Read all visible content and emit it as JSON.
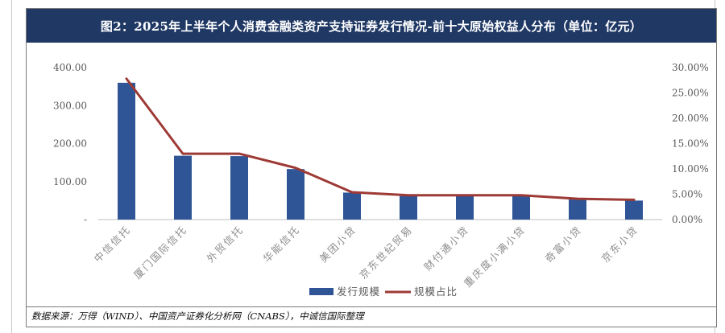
{
  "title": "图2：2025年上半年个人消费金融类资产支持证券发行情况-前十大原始权益人分布（单位：亿元）",
  "source": "数据来源：万得（WIND）、中国资产证券化分析网（CNABS），中诚信国际整理",
  "colors": {
    "title_bg": "#1f3864",
    "bar": "#2f5597",
    "line": "#9e3a36"
  },
  "chart_data": {
    "type": "bar",
    "categories": [
      "中信信托",
      "厦门国际信托",
      "外贸信托",
      "华能信托",
      "美团小贷",
      "京东世纪贸易",
      "财付通小贷",
      "重庆度小满小贷",
      "奇富小贷",
      "京东小贷"
    ],
    "series": [
      {
        "name": "发行规模",
        "type": "bar",
        "axis": "left",
        "values": [
          360,
          168,
          167,
          133,
          71,
          62,
          62,
          62,
          53,
          50
        ]
      },
      {
        "name": "规模占比",
        "type": "line",
        "axis": "right",
        "unit": "%",
        "values": [
          27.8,
          13.0,
          13.0,
          10.2,
          5.4,
          4.8,
          4.8,
          4.8,
          4.1,
          3.9
        ]
      }
    ],
    "left_axis": {
      "ticks": [
        "-",
        "100.00",
        "200.00",
        "300.00",
        "400.00"
      ],
      "ylim": [
        0,
        400
      ]
    },
    "right_axis": {
      "ticks": [
        "0.00%",
        "5.00%",
        "10.00%",
        "15.00%",
        "20.00%",
        "25.00%",
        "30.00%"
      ],
      "ylim": [
        0,
        30
      ]
    },
    "legend": [
      "发行规模",
      "规模占比"
    ],
    "legend_position": "bottom",
    "grid": false
  }
}
